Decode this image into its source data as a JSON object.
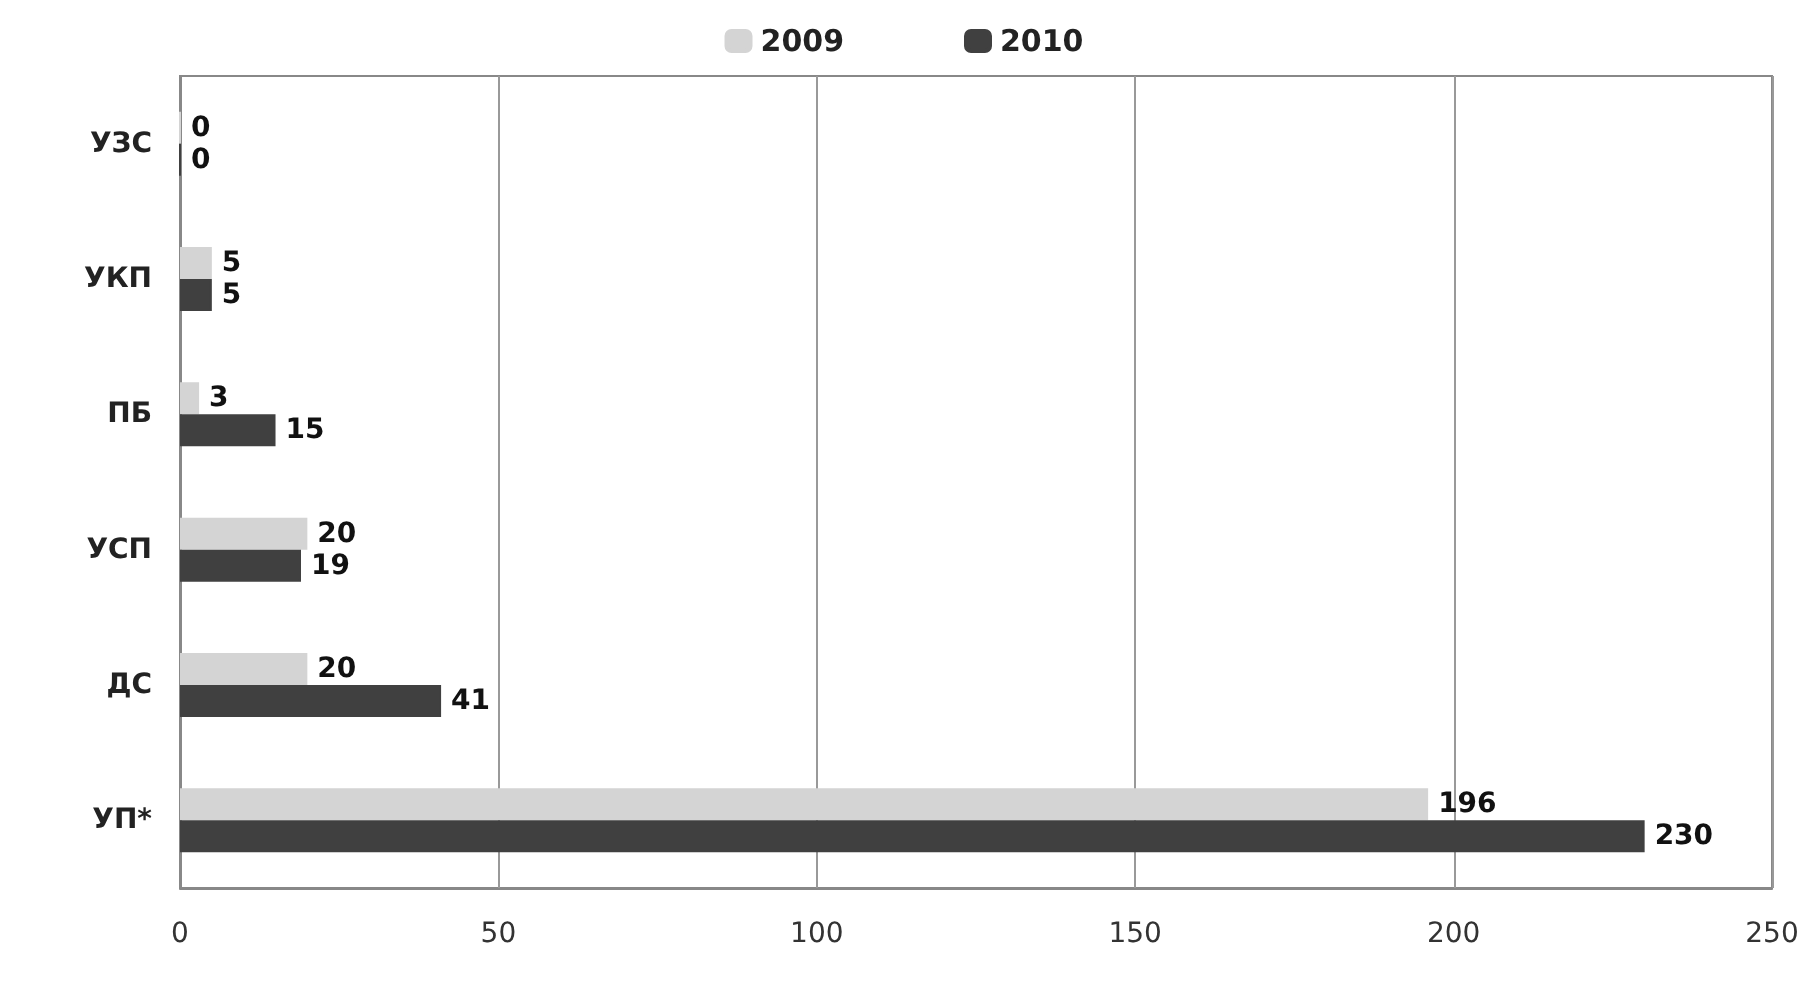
{
  "chart_data": {
    "type": "bar",
    "orientation": "horizontal",
    "categories": [
      "УЗС",
      "УКП",
      "ПБ",
      "УСП",
      "ДС",
      "УП*"
    ],
    "series": [
      {
        "name": "2009",
        "color": "#d4d4d4",
        "values": [
          0,
          5,
          3,
          20,
          20,
          196
        ]
      },
      {
        "name": "2010",
        "color": "#404040",
        "values": [
          0,
          5,
          15,
          19,
          41,
          230
        ]
      }
    ],
    "xlim": [
      0,
      250
    ],
    "xticks": [
      0,
      50,
      100,
      150,
      200,
      250
    ],
    "grid": "x",
    "legend": "top",
    "data_labels": true
  }
}
